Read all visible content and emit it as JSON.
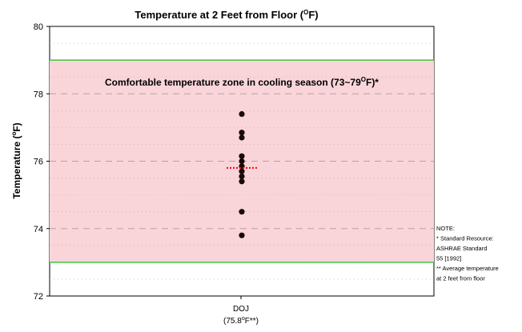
{
  "chart_data": {
    "type": "scatter",
    "title_main": "Temperature at 2 Feet from Floor (",
    "title_sup": "O",
    "title_end": "F)",
    "ylabel_main": "Temperature (",
    "ylabel_sup": "o",
    "ylabel_end": "F)",
    "ylim": [
      72,
      80
    ],
    "yticks": [
      "72",
      "74",
      "76",
      "78",
      "80"
    ],
    "grid": true,
    "category": "DOJ",
    "category_sub_main": "(75.8",
    "category_sub_sup": "o",
    "category_sub_end": "F**)",
    "comfort_zone": {
      "low": 73,
      "high": 79,
      "label_main": "Comfortable temperature zone in cooling season (73~79",
      "label_sup": "O",
      "label_end": "F)*"
    },
    "points": [
      77.4,
      76.85,
      76.7,
      76.15,
      76.0,
      75.85,
      75.7,
      75.55,
      75.4,
      74.5,
      73.8
    ],
    "average": 75.8,
    "note": [
      "NOTE:",
      "* Standard Resource:",
      "ASHRAE Standard",
      "55 [1992]",
      "** Average temperature",
      "at 2 feet from floor"
    ],
    "colors": {
      "zone_fill": "#f9d5d9",
      "zone_border": "#33cc33",
      "points": "#1a0a0a",
      "average": "#ff0000",
      "grid": "#b8a0a0"
    }
  }
}
